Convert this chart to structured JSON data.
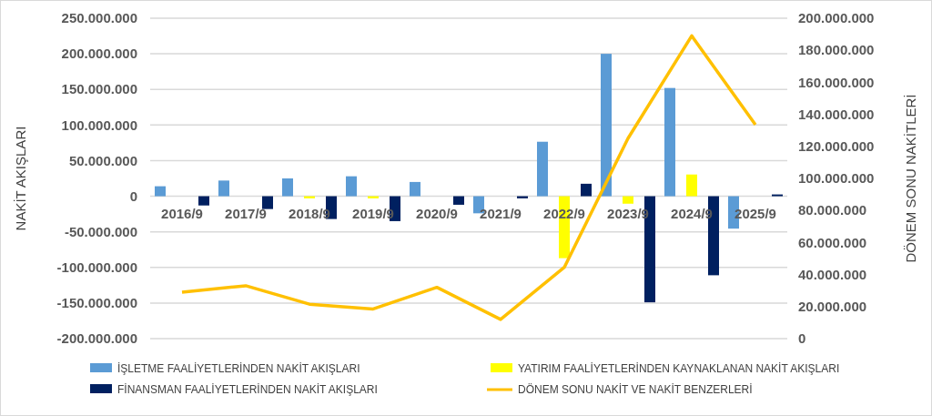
{
  "chart_data": {
    "type": "bar",
    "categories": [
      "2016/9",
      "2017/9",
      "2018/9",
      "2019/9",
      "2020/9",
      "2021/9",
      "2022/9",
      "2023/9",
      "2024/9",
      "2025/9"
    ],
    "ylabel": "NAKİT AKIŞLARI",
    "y2label": "DÖNEM SONU NAKİTLERİ",
    "series": [
      {
        "name": "İŞLETME FAALİYETLERİNDEN NAKİT AKIŞLARI",
        "color": "#5b9bd5",
        "values": [
          14000000,
          22000000,
          25000000,
          28000000,
          20000000,
          -24000000,
          76500000,
          200000000,
          152000000,
          -45500000
        ]
      },
      {
        "name": "YATIRIM FAALİYETLERİNDEN KAYNAKLANAN NAKİT AKIŞLARI",
        "color": "#ffff00",
        "values": [
          0,
          0,
          -3000000,
          -3000000,
          0,
          0,
          -87000000,
          -10500000,
          30500000,
          0
        ]
      },
      {
        "name": "FİNANSMAN FAALİYETLERİNDEN NAKİT AKIŞLARI",
        "color": "#002060",
        "values": [
          -13000000,
          -18000000,
          -32000000,
          -35000000,
          -12000000,
          -3000000,
          17500000,
          -149000000,
          -111000000,
          2500000
        ]
      },
      {
        "name": "DÖNEM SONU NAKİT VE NAKİT BENZERLERİ",
        "type": "line",
        "axis": "y2",
        "color": "#ffc000",
        "values": [
          29000000,
          33000000,
          21500000,
          18500000,
          32000000,
          12000000,
          44500000,
          125000000,
          189000000,
          133500000
        ]
      }
    ],
    "ylim": [
      -200000000,
      250000000
    ],
    "yticks": [
      {
        "value": -200000000,
        "label": "-200.000.000"
      },
      {
        "value": -150000000,
        "label": "-150.000.000"
      },
      {
        "value": -100000000,
        "label": "-100.000.000"
      },
      {
        "value": -50000000,
        "label": "-50.000.000"
      },
      {
        "value": 0,
        "label": "0"
      },
      {
        "value": 50000000,
        "label": "50.000.000"
      },
      {
        "value": 100000000,
        "label": "100.000.000"
      },
      {
        "value": 150000000,
        "label": "150.000.000"
      },
      {
        "value": 200000000,
        "label": "200.000.000"
      },
      {
        "value": 250000000,
        "label": "250.000.000"
      }
    ],
    "y2lim": [
      0,
      200000000
    ],
    "y2ticks": [
      0,
      {
        "value": 20000000,
        "label": "20.000.000"
      },
      {
        "value": 40000000,
        "label": "40.000.000"
      },
      {
        "value": 60000000,
        "label": "60.000.000"
      },
      {
        "value": 80000000,
        "label": "80.000.000"
      },
      {
        "value": 100000000,
        "label": "100.000.000"
      },
      {
        "value": 120000000,
        "label": "120.000.000"
      },
      {
        "value": 140000000,
        "label": "140.000.000"
      },
      {
        "value": 160000000,
        "label": "160.000.000"
      },
      {
        "value": 180000000,
        "label": "180.000.000"
      },
      {
        "value": 200000000,
        "label": "200.000.000"
      }
    ],
    "grid": "y",
    "legend": "bottom",
    "line_style": "solid",
    "marker": "none"
  }
}
